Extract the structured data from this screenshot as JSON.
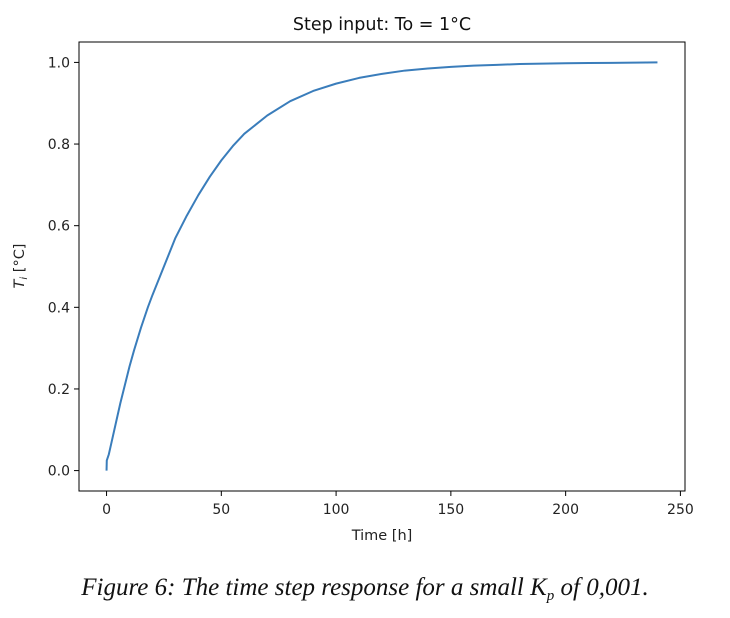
{
  "chart_data": {
    "type": "line",
    "title": "Step input: To = 1°C",
    "xlabel": "Time [h]",
    "ylabel_main": "T",
    "ylabel_sub": "i",
    "ylabel_unit": " [°C]",
    "xlim": [
      -12,
      252
    ],
    "ylim": [
      -0.05,
      1.05
    ],
    "xticks": [
      0,
      50,
      100,
      150,
      200,
      250
    ],
    "yticks": [
      0.0,
      0.2,
      0.4,
      0.6,
      0.8,
      1.0
    ],
    "xtick_labels": [
      "0",
      "50",
      "100",
      "150",
      "200",
      "250"
    ],
    "ytick_labels": [
      "0.0",
      "0.2",
      "0.4",
      "0.6",
      "0.8",
      "1.0"
    ],
    "grid": false,
    "line_color": "#3a7dbb",
    "series": [
      {
        "x": [
          0,
          0.1,
          1,
          2,
          4,
          6,
          8,
          10,
          12,
          15,
          18,
          20,
          25,
          30,
          35,
          40,
          45,
          50,
          55,
          60,
          70,
          80,
          90,
          100,
          110,
          120,
          130,
          140,
          150,
          160,
          170,
          180,
          190,
          200,
          210,
          220,
          230,
          240
        ],
        "y": [
          0.0,
          0.025,
          0.04,
          0.065,
          0.115,
          0.165,
          0.21,
          0.255,
          0.295,
          0.35,
          0.4,
          0.43,
          0.5,
          0.57,
          0.625,
          0.675,
          0.72,
          0.76,
          0.795,
          0.825,
          0.87,
          0.905,
          0.93,
          0.948,
          0.962,
          0.972,
          0.98,
          0.985,
          0.989,
          0.992,
          0.994,
          0.996,
          0.997,
          0.998,
          0.9985,
          0.999,
          0.9995,
          1.0
        ]
      }
    ]
  },
  "caption": {
    "prefix": "Figure 6: The time step response for a small K",
    "sub": "p",
    "suffix": " of 0,001."
  }
}
